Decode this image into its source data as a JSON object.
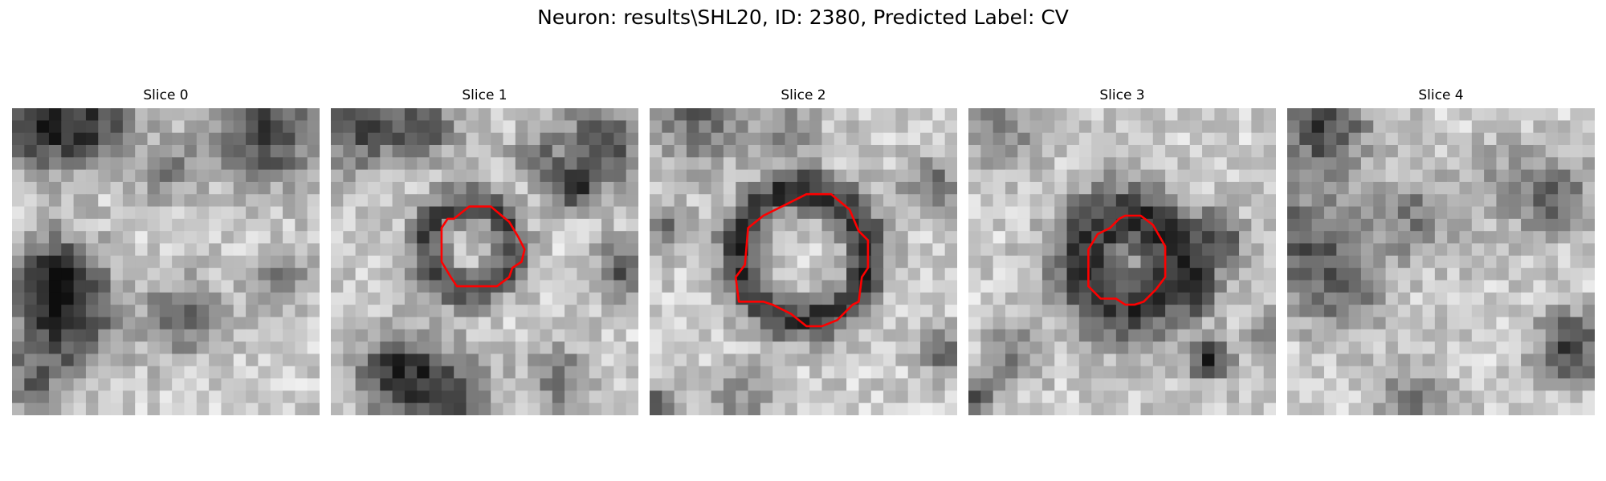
{
  "figure": {
    "title": "Neuron: results\\SHL20, ID: 2380, Predicted Label: CV"
  },
  "panels": [
    {
      "title": "Slice 0",
      "seed": 11,
      "has_contour": false,
      "contour": []
    },
    {
      "title": "Slice 1",
      "seed": 23,
      "has_contour": true,
      "contour": [
        [
          0.4,
          0.36
        ],
        [
          0.45,
          0.32
        ],
        [
          0.52,
          0.32
        ],
        [
          0.58,
          0.37
        ],
        [
          0.61,
          0.42
        ],
        [
          0.63,
          0.46
        ],
        [
          0.62,
          0.5
        ],
        [
          0.59,
          0.52
        ],
        [
          0.58,
          0.55
        ],
        [
          0.54,
          0.58
        ],
        [
          0.5,
          0.58
        ],
        [
          0.41,
          0.58
        ],
        [
          0.39,
          0.55
        ],
        [
          0.36,
          0.5
        ],
        [
          0.36,
          0.45
        ],
        [
          0.36,
          0.39
        ],
        [
          0.38,
          0.36
        ]
      ]
    },
    {
      "title": "Slice 2",
      "seed": 37,
      "has_contour": true,
      "contour": [
        [
          0.43,
          0.32
        ],
        [
          0.51,
          0.28
        ],
        [
          0.59,
          0.28
        ],
        [
          0.65,
          0.33
        ],
        [
          0.68,
          0.4
        ],
        [
          0.71,
          0.43
        ],
        [
          0.71,
          0.52
        ],
        [
          0.69,
          0.55
        ],
        [
          0.68,
          0.63
        ],
        [
          0.66,
          0.64
        ],
        [
          0.61,
          0.69
        ],
        [
          0.56,
          0.71
        ],
        [
          0.51,
          0.71
        ],
        [
          0.46,
          0.67
        ],
        [
          0.4,
          0.64
        ],
        [
          0.37,
          0.63
        ],
        [
          0.29,
          0.63
        ],
        [
          0.28,
          0.55
        ],
        [
          0.31,
          0.51
        ],
        [
          0.32,
          0.39
        ],
        [
          0.37,
          0.35
        ]
      ]
    },
    {
      "title": "Slice 3",
      "seed": 53,
      "has_contour": true,
      "contour": [
        [
          0.49,
          0.36
        ],
        [
          0.51,
          0.35
        ],
        [
          0.56,
          0.35
        ],
        [
          0.6,
          0.38
        ],
        [
          0.64,
          0.45
        ],
        [
          0.64,
          0.55
        ],
        [
          0.61,
          0.59
        ],
        [
          0.57,
          0.63
        ],
        [
          0.54,
          0.64
        ],
        [
          0.51,
          0.64
        ],
        [
          0.48,
          0.62
        ],
        [
          0.43,
          0.62
        ],
        [
          0.39,
          0.58
        ],
        [
          0.39,
          0.46
        ],
        [
          0.42,
          0.41
        ],
        [
          0.46,
          0.39
        ]
      ]
    },
    {
      "title": "Slice 4",
      "seed": 71,
      "has_contour": false,
      "contour": []
    }
  ],
  "style": {
    "contour_color": "#ff0000",
    "grid_size": 25
  }
}
